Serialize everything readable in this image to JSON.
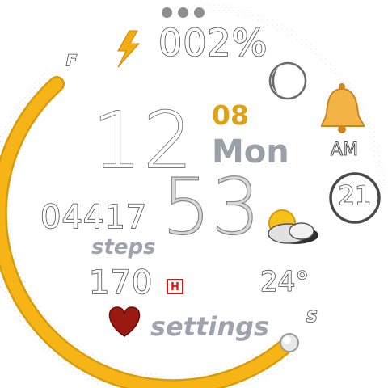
{
  "watch": {
    "battery_percent": "002%",
    "time_hour": "12",
    "time_minute": "53",
    "time_seconds": "21",
    "am_pm": "AM",
    "date_day": "08",
    "weekday": "Mon",
    "steps_count": "04417",
    "steps_label": "steps",
    "heart_rate": "170",
    "temperature": "24°",
    "settings_label": "settings",
    "gauge_full_label": "F",
    "gauge_start_label": "S",
    "gauge_fill_fraction": 1.0,
    "seconds_fraction": 0.35
  },
  "icons": {
    "menu": "more-dots-icon",
    "battery": "lightning-bolt-icon",
    "moon": "moon-phase-icon",
    "alarm": "bell-icon",
    "weather": "partly-cloudy-icon",
    "heart_rate_badge": "hr-badge-icon",
    "heart": "heart-icon"
  },
  "colors": {
    "accent_yellow": "#f7b416",
    "date_orange": "#e2a013",
    "weekday_gray": "#9aa0a8",
    "label_gray": "#9fa3ae",
    "heart_red": "#9a1a12",
    "hr_badge_red": "#d61818"
  }
}
